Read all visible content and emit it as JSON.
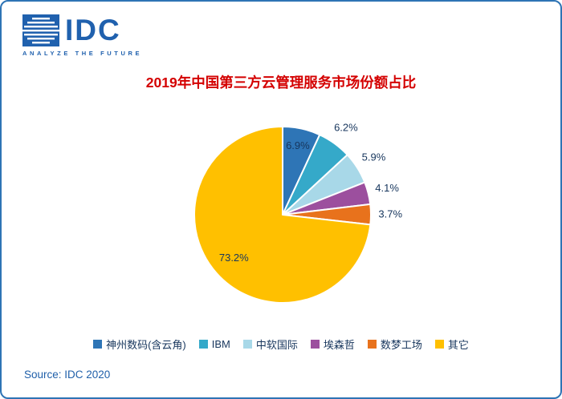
{
  "logo": {
    "text": "IDC",
    "tagline": "ANALYZE THE FUTURE",
    "color": "#2061ae"
  },
  "chart_data": {
    "type": "pie",
    "title": "2019年中国第三方云管理服务市场份额占比",
    "title_color": "#d40000",
    "categories": [
      "神州数码(含云角)",
      "IBM",
      "中软国际",
      "埃森哲",
      "数梦工场",
      "其它"
    ],
    "values": [
      6.9,
      6.2,
      5.9,
      4.1,
      3.7,
      73.2
    ],
    "labels": [
      "6.9%",
      "6.2%",
      "5.9%",
      "4.1%",
      "3.7%",
      "73.2%"
    ],
    "colors": [
      "#2e75b6",
      "#35a9c9",
      "#a8d8e8",
      "#9c4f9e",
      "#e8721c",
      "#ffc000"
    ],
    "label_placement": [
      "inside",
      "outside",
      "outside",
      "outside",
      "outside",
      "inside"
    ],
    "label_color": "#17365d",
    "legend_position": "bottom",
    "start_angle_deg": 0,
    "grid": false
  },
  "source": {
    "text": "Source: IDC 2020"
  }
}
